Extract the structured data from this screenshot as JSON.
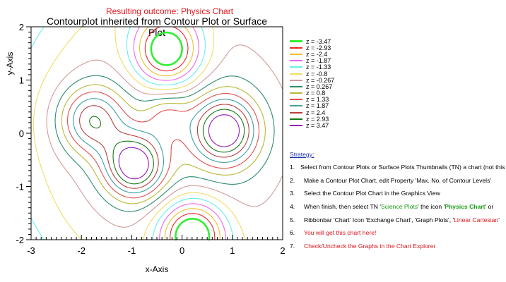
{
  "chart_data": {
    "type": "contour",
    "supertitle": "Resulting outcome: Physics Chart",
    "title": "Contourplot inherited from Contour Plot or Surface Plot",
    "xlabel": "x-Axis",
    "ylabel": "y-Axis",
    "xlim": [
      -3,
      2
    ],
    "ylim": [
      -2,
      2
    ],
    "xticks": [
      "-3",
      "-2",
      "-1",
      "0",
      "1",
      "2"
    ],
    "yticks": [
      "-2",
      "-1",
      "0",
      "1",
      "2"
    ],
    "levels": [
      {
        "z": -3.47,
        "label": "z = -3.47",
        "color": "#33ee33"
      },
      {
        "z": -2.93,
        "label": "z = -2.93",
        "color": "#e82a2a"
      },
      {
        "z": -2.4,
        "label": "z = -2.4",
        "color": "#f0c030"
      },
      {
        "z": -1.87,
        "label": "z = -1.87",
        "color": "#ee66ee"
      },
      {
        "z": -1.33,
        "label": "z = -1.33",
        "color": "#66eeee"
      },
      {
        "z": -0.8,
        "label": "z = -0.8",
        "color": "#f2dc66"
      },
      {
        "z": -0.267,
        "label": "z = -0.267",
        "color": "#d29a9a"
      },
      {
        "z": 0.267,
        "label": "z = 0.267",
        "color": "#2c8c6a"
      },
      {
        "z": 0.8,
        "label": "z = 0.8",
        "color": "#b8b838"
      },
      {
        "z": 1.33,
        "label": "z = 1.33",
        "color": "#e05050"
      },
      {
        "z": 1.87,
        "label": "z = 1.87",
        "color": "#40a0a0"
      },
      {
        "z": 2.4,
        "label": "z = 2.4",
        "color": "#b84040"
      },
      {
        "z": 2.93,
        "label": "z = 2.93",
        "color": "#187818"
      },
      {
        "z": 3.47,
        "label": "z = 3.47",
        "color": "#9818b8"
      }
    ],
    "grid": false,
    "legend_position": "right"
  },
  "strategy": {
    "heading": "Strategy:",
    "steps": [
      {
        "num": "1.",
        "parts": [
          {
            "t": "Select from Contour Plots or Surface Plots Thumbnails (TN) a chart (not this one!).",
            "s": ""
          }
        ]
      },
      {
        "num": "2.",
        "parts": [
          {
            "t": "Make a Contour Plot Chart, edit Property 'Max. No. of Contour Levels'",
            "s": ""
          }
        ]
      },
      {
        "num": "3.",
        "parts": [
          {
            "t": "Select the Contour Plot Chart in the Graphics View",
            "s": ""
          }
        ]
      },
      {
        "num": "4.",
        "parts": [
          {
            "t": "When finish, then select TN '",
            "s": ""
          },
          {
            "t": "Science Plots",
            "s": "c-green2"
          },
          {
            "t": "' the icon '",
            "s": ""
          },
          {
            "t": "Physics Chart",
            "s": "c-green"
          },
          {
            "t": "' or",
            "s": ""
          }
        ]
      },
      {
        "num": "5.",
        "parts": [
          {
            "t": "Ribbonbar 'Chart' Icon 'Exchange Chart', 'Graph Plots', '",
            "s": ""
          },
          {
            "t": "Linear Cartesian",
            "s": "c-red"
          },
          {
            "t": "'",
            "s": ""
          }
        ]
      },
      {
        "num": "6.",
        "parts": [
          {
            "t": "You will get this chart here!",
            "s": "c-red"
          }
        ]
      },
      {
        "num": "7.",
        "parts": [
          {
            "t": "Check/Uncheck the Graphs in the Chart Explorer",
            "s": "c-red"
          }
        ]
      }
    ]
  }
}
